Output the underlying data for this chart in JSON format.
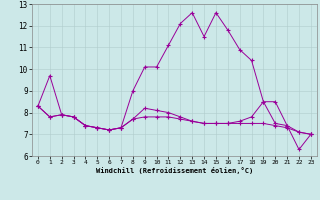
{
  "xlabel": "Windchill (Refroidissement éolien,°C)",
  "background_color": "#cce8e8",
  "line_color": "#990099",
  "xlim": [
    -0.5,
    23.5
  ],
  "ylim": [
    6,
    13
  ],
  "yticks": [
    6,
    7,
    8,
    9,
    10,
    11,
    12,
    13
  ],
  "xticks": [
    0,
    1,
    2,
    3,
    4,
    5,
    6,
    7,
    8,
    9,
    10,
    11,
    12,
    13,
    14,
    15,
    16,
    17,
    18,
    19,
    20,
    21,
    22,
    23
  ],
  "series": [
    [
      8.3,
      9.7,
      7.9,
      7.8,
      7.4,
      7.3,
      7.2,
      7.3,
      9.0,
      10.1,
      10.1,
      11.1,
      12.1,
      12.6,
      11.5,
      12.6,
      11.8,
      10.9,
      10.4,
      8.5,
      8.5,
      7.4,
      6.3,
      7.0
    ],
    [
      8.3,
      7.8,
      7.9,
      7.8,
      7.4,
      7.3,
      7.2,
      7.3,
      7.7,
      8.2,
      8.1,
      8.0,
      7.8,
      7.6,
      7.5,
      7.5,
      7.5,
      7.6,
      7.8,
      8.5,
      7.5,
      7.4,
      7.1,
      7.0
    ],
    [
      8.3,
      7.8,
      7.9,
      7.8,
      7.4,
      7.3,
      7.2,
      7.3,
      7.7,
      7.8,
      7.8,
      7.8,
      7.7,
      7.6,
      7.5,
      7.5,
      7.5,
      7.5,
      7.5,
      7.5,
      7.4,
      7.3,
      7.1,
      7.0
    ]
  ]
}
